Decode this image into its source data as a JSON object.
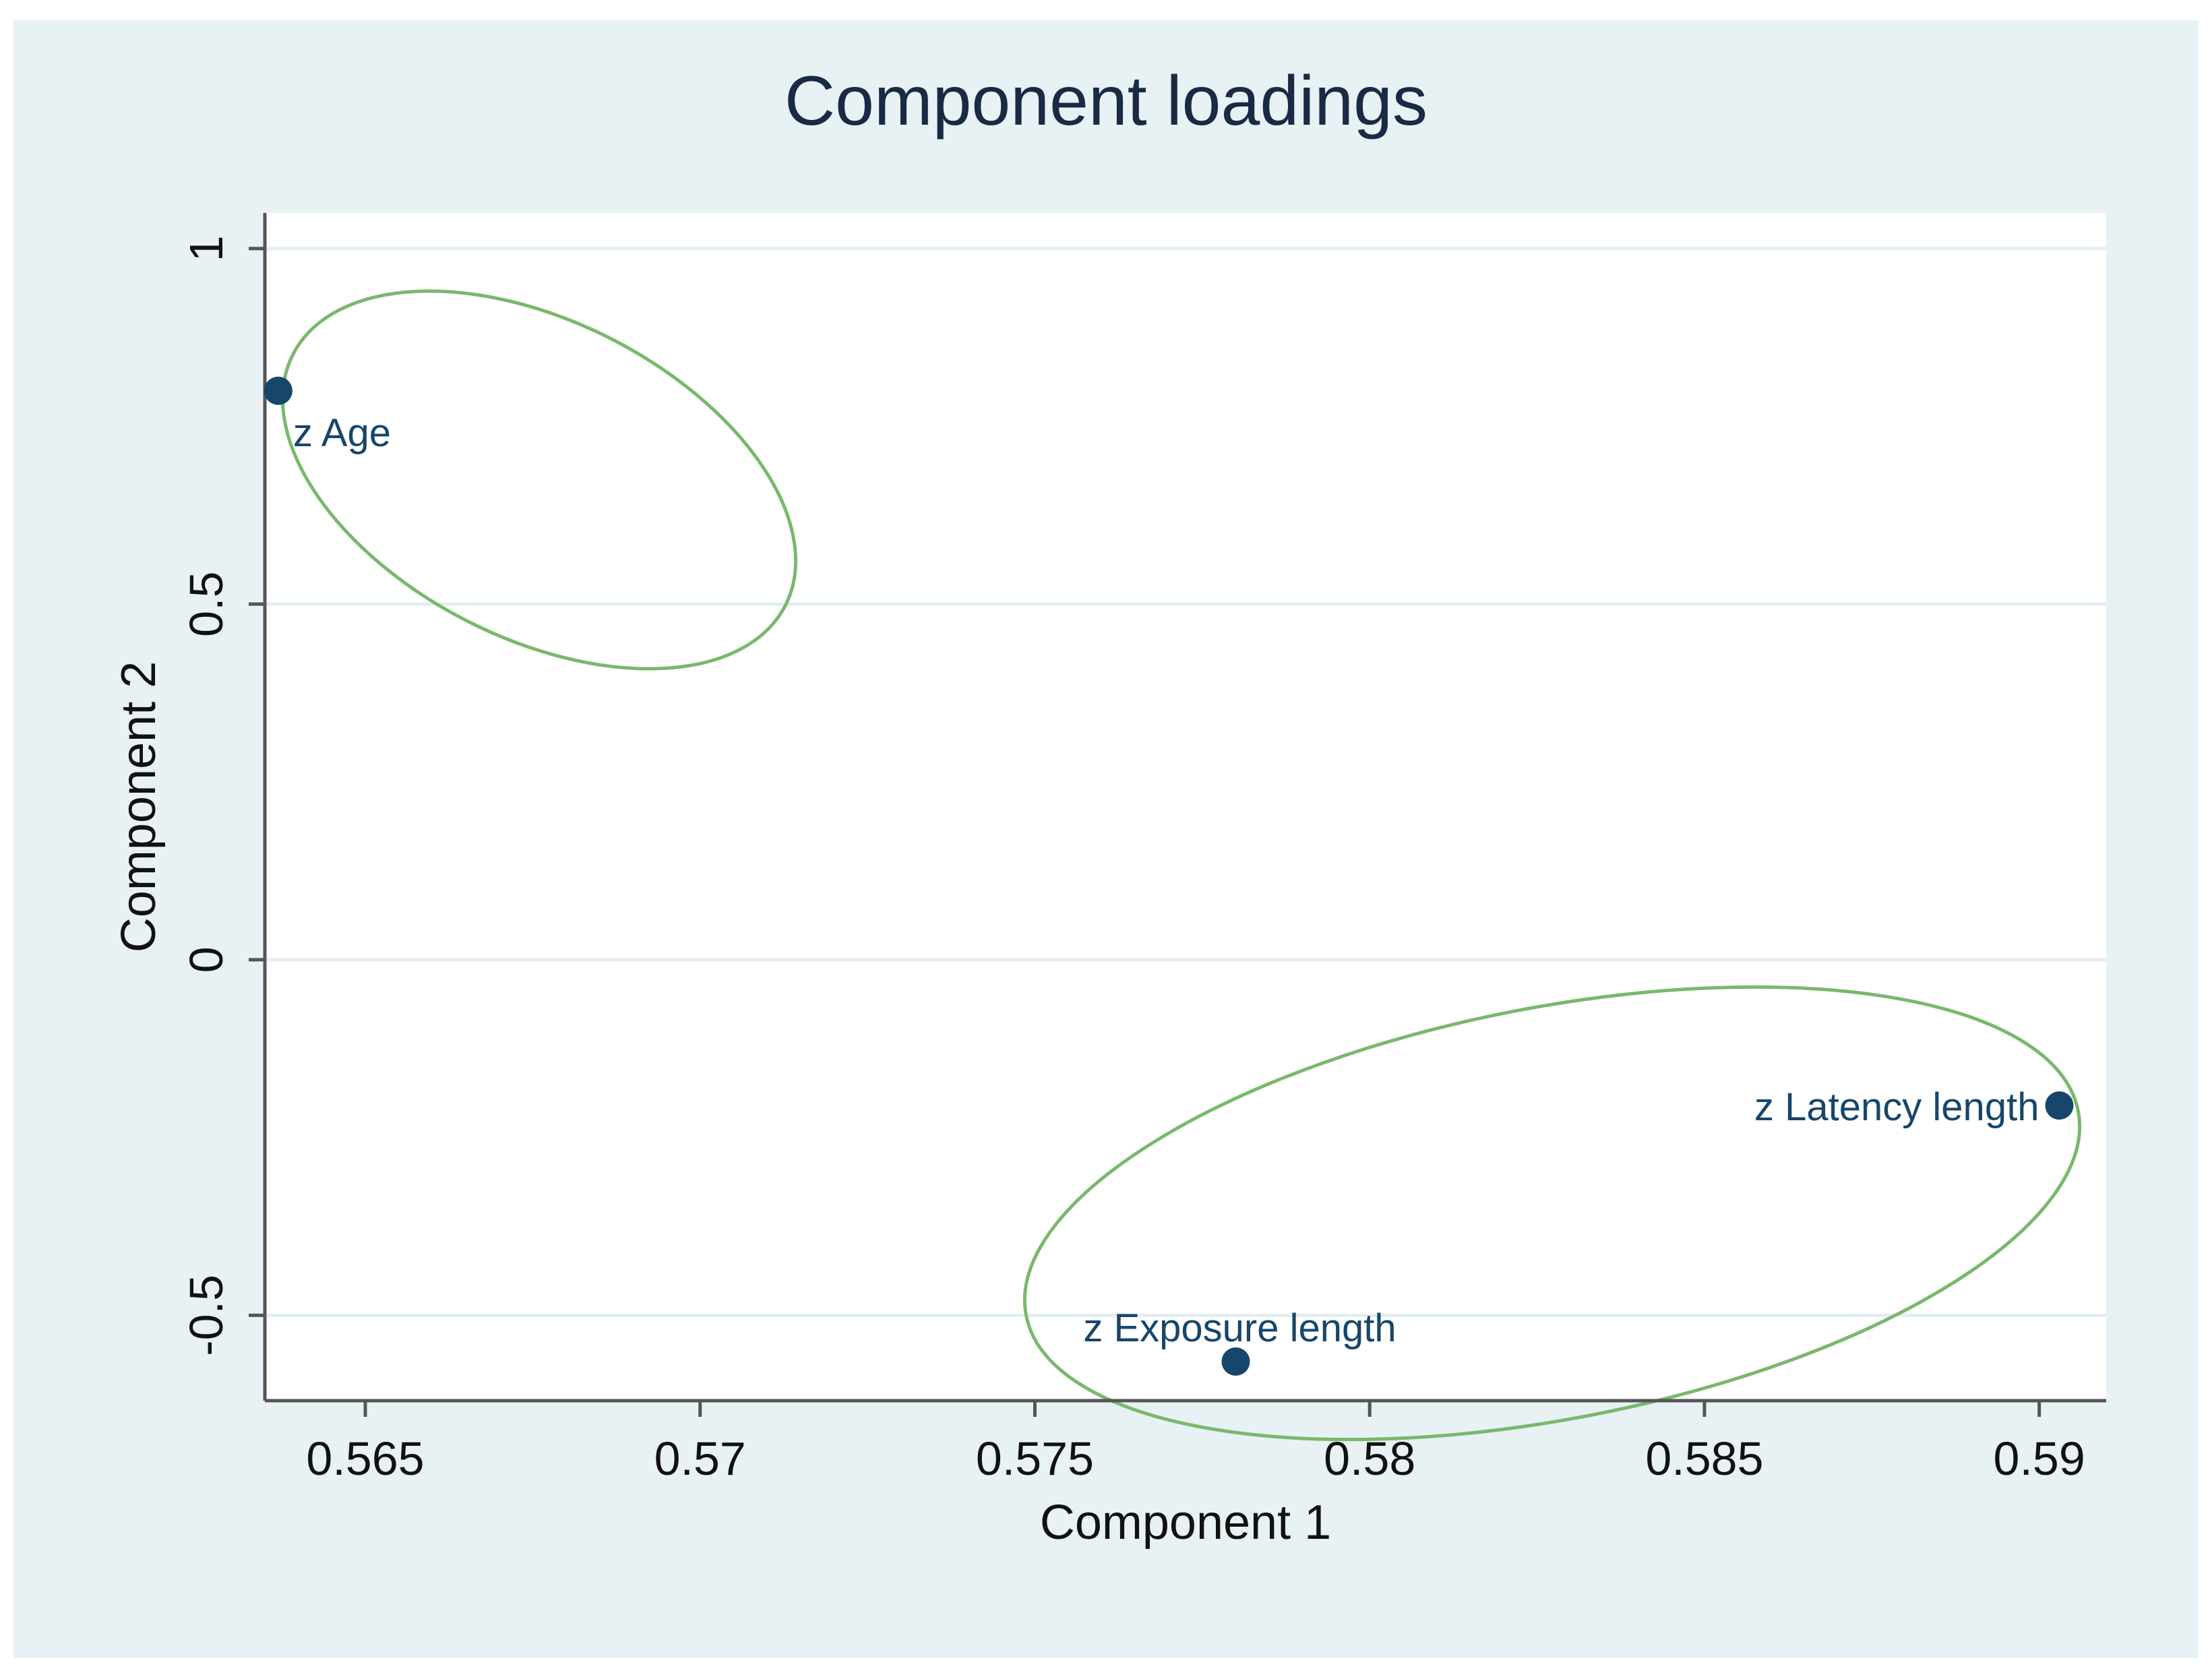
{
  "chart_data": {
    "type": "scatter",
    "title": "Component loadings",
    "xlabel": "Component 1",
    "ylabel": "Component 2",
    "xlim": [
      0.5635,
      0.591
    ],
    "ylim": [
      -0.62,
      1.05
    ],
    "x_ticks": [
      0.565,
      0.57,
      0.575,
      0.58,
      0.585,
      0.59
    ],
    "x_tick_labels": [
      "0.565",
      "0.57",
      "0.575",
      "0.58",
      "0.585",
      "0.59"
    ],
    "y_ticks": [
      -0.5,
      0,
      0.5,
      1
    ],
    "y_tick_labels": [
      "-0.5",
      "0",
      "0.5",
      "1"
    ],
    "grid": "horizontal",
    "points": [
      {
        "label": "z Age",
        "x": 0.5637,
        "y": 0.8
      },
      {
        "label": "z Exposure length",
        "x": 0.578,
        "y": -0.565
      },
      {
        "label": "z Latency length",
        "x": 0.5903,
        "y": -0.205
      }
    ],
    "annotations": [
      {
        "shape": "ellipse",
        "encloses": [
          "z Age"
        ]
      },
      {
        "shape": "ellipse",
        "encloses": [
          "z Exposure length",
          "z Latency length"
        ]
      }
    ]
  },
  "colors": {
    "outer_background": "#e8f1f3",
    "plot_background": "#ffffff",
    "grid": "#e3eef1",
    "axis": "#555555",
    "marker": "#16466b",
    "point_label": "#16466b",
    "title": "#1a2a45",
    "text": "#111111",
    "ellipse": "#79b86d"
  }
}
